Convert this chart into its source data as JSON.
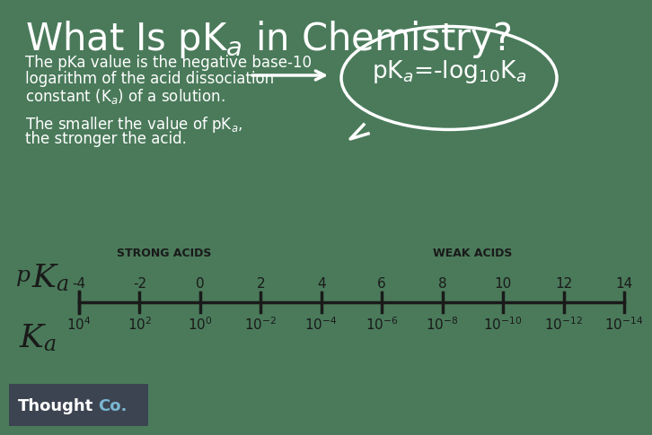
{
  "bg_green": "#4a7a5a",
  "bg_light": "#b8c9a3",
  "bg_footer": "#4a6b5a",
  "text_white": "#ffffff",
  "text_dark": "#1a1a1a",
  "thoughtco_bg": "#3d4451",
  "thoughtco_white": "#ffffff",
  "thoughtco_blue": "#7ab8d4",
  "title_fontsize": 30,
  "body_fontsize": 12,
  "formula_fontsize": 19,
  "pka_values": [
    -4,
    -2,
    0,
    2,
    4,
    6,
    8,
    10,
    12,
    14
  ],
  "ka_exponents": [
    "4",
    "2",
    "0",
    "-2",
    "-4",
    "-6",
    "-8",
    "-10",
    "-12",
    "-14"
  ],
  "strong_label": "STRONG ACIDS",
  "weak_label": "WEAK ACIDS"
}
